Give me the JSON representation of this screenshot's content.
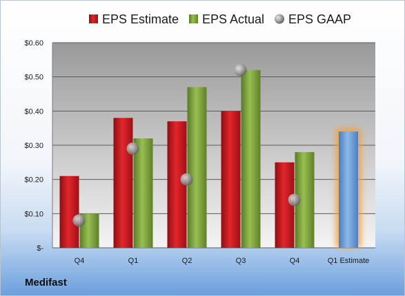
{
  "company_name": "Medifast",
  "colors": {
    "estimate": "#c0141c",
    "actual": "#7fa23a",
    "gaap": "#a8a8a8",
    "forecast": "#6fa0d8",
    "forecast_glow": "#f0a040"
  },
  "chart_data": {
    "type": "bar",
    "title": "",
    "xlabel": "",
    "ylabel": "",
    "ylim": [
      0,
      0.6
    ],
    "yticks": [
      {
        "value": 0,
        "label": "$-"
      },
      {
        "value": 0.1,
        "label": "$0.10"
      },
      {
        "value": 0.2,
        "label": "$0.20"
      },
      {
        "value": 0.3,
        "label": "$0.30"
      },
      {
        "value": 0.4,
        "label": "$0.40"
      },
      {
        "value": 0.5,
        "label": "$0.50"
      },
      {
        "value": 0.6,
        "label": "$0.60"
      }
    ],
    "grid": true,
    "legend_position": "top",
    "categories": [
      "Q4",
      "Q1",
      "Q2",
      "Q3",
      "Q4",
      "Q1 Estimate"
    ],
    "series": [
      {
        "name": "EPS Estimate",
        "kind": "bar",
        "values": [
          0.21,
          0.38,
          0.37,
          0.4,
          0.25,
          null
        ]
      },
      {
        "name": "EPS Actual",
        "kind": "bar",
        "values": [
          0.1,
          0.32,
          0.47,
          0.52,
          0.28,
          null
        ]
      },
      {
        "name": "EPS GAAP",
        "kind": "point",
        "values": [
          0.08,
          0.29,
          0.2,
          0.52,
          0.14,
          null
        ]
      },
      {
        "name": "",
        "kind": "forecast-bar",
        "values": [
          null,
          null,
          null,
          null,
          null,
          0.34
        ]
      }
    ]
  }
}
